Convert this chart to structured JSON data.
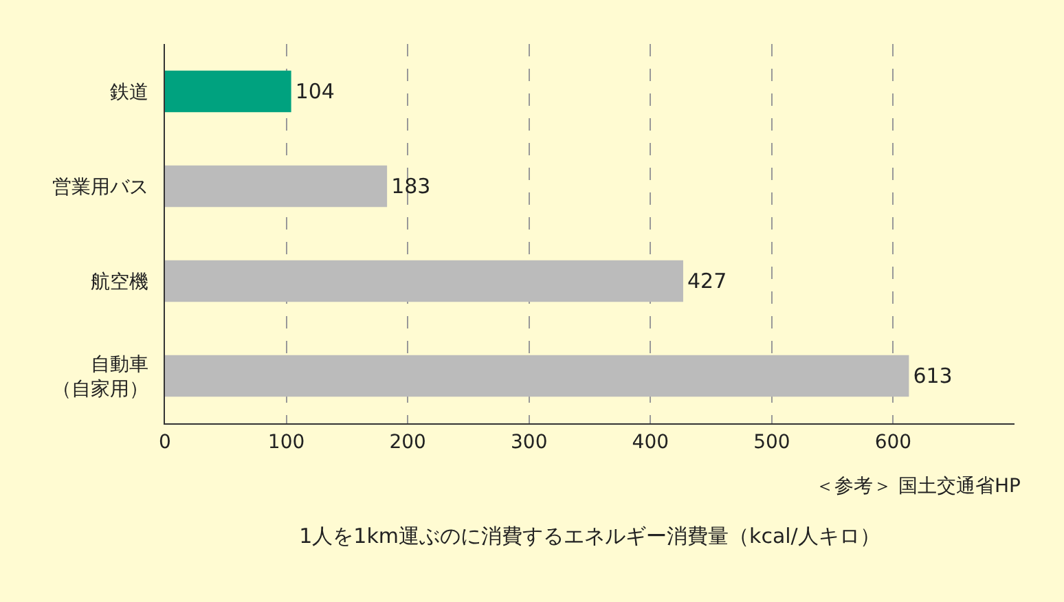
{
  "chart_data": {
    "type": "bar",
    "orientation": "horizontal",
    "xlabel": "1人を1km運ぶのに消費するエネルギー消費量（kcal/人キロ）",
    "categories": [
      "鉄道",
      "営業用バス",
      "航空機",
      "自動車（自家用）"
    ],
    "values": [
      104,
      183,
      427,
      613
    ],
    "colors": [
      "#00a27f",
      "#bbbbbb",
      "#bbbbbb",
      "#bbbbbb"
    ],
    "xlim": [
      0,
      700
    ],
    "xticks": [
      0,
      100,
      200,
      300,
      400,
      500,
      600
    ],
    "grid": "x",
    "data_labels": true,
    "annotations": [
      "＜参考＞ 国土交通省HP"
    ]
  }
}
